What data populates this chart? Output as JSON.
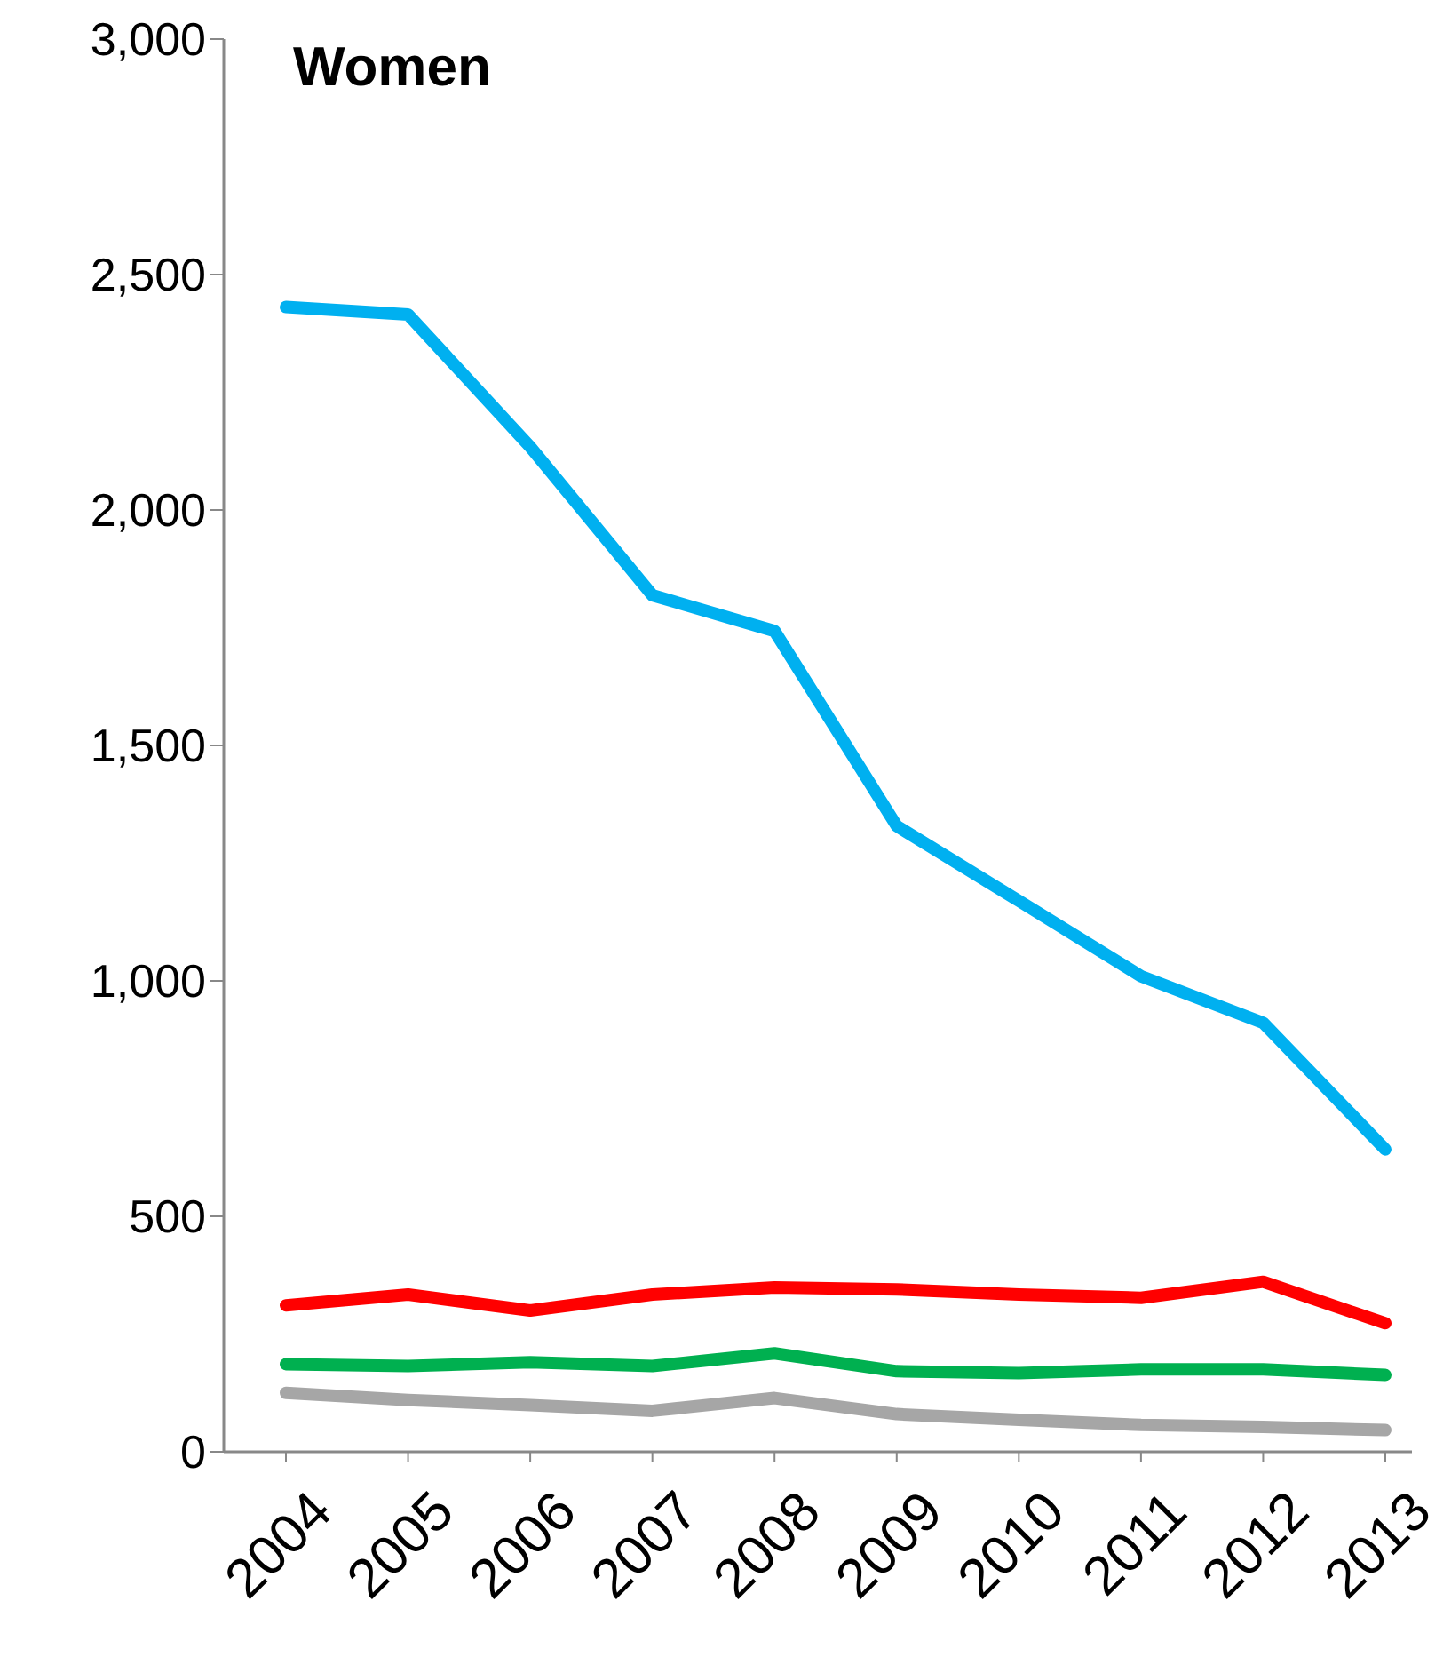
{
  "chart_data": {
    "type": "line",
    "title": "Women",
    "categories": [
      "2004",
      "2005",
      "2006",
      "2007",
      "2008",
      "2009",
      "2010",
      "2011",
      "2012",
      "2013"
    ],
    "series": [
      {
        "color": "#00b0f0",
        "values": [
          2431,
          2415,
          2134,
          1819,
          1743,
          1329,
          1170,
          1010,
          911,
          642
        ]
      },
      {
        "color": "#ff0000",
        "values": [
          311,
          334,
          300,
          334,
          349,
          345,
          334,
          327,
          361,
          273
        ]
      },
      {
        "color": "#00b050",
        "values": [
          186,
          182,
          190,
          182,
          209,
          171,
          167,
          175,
          175,
          163
        ]
      },
      {
        "color": "#a6a6a6",
        "values": [
          125,
          110,
          99,
          87,
          114,
          80,
          68,
          57,
          53,
          46
        ]
      }
    ],
    "ylim": [
      0,
      3000
    ],
    "yticks": [
      0,
      {
        "value": 500,
        "label": "500"
      },
      {
        "value": 1000,
        "label": "1,000"
      },
      {
        "value": 1500,
        "label": "1,500"
      },
      {
        "value": 2000,
        "label": "2,000"
      },
      {
        "value": 2500,
        "label": "2,500"
      },
      {
        "value": 3000,
        "label": "3,000"
      }
    ],
    "grid": false,
    "legend": false,
    "marker": "none",
    "line_style": "solid"
  }
}
